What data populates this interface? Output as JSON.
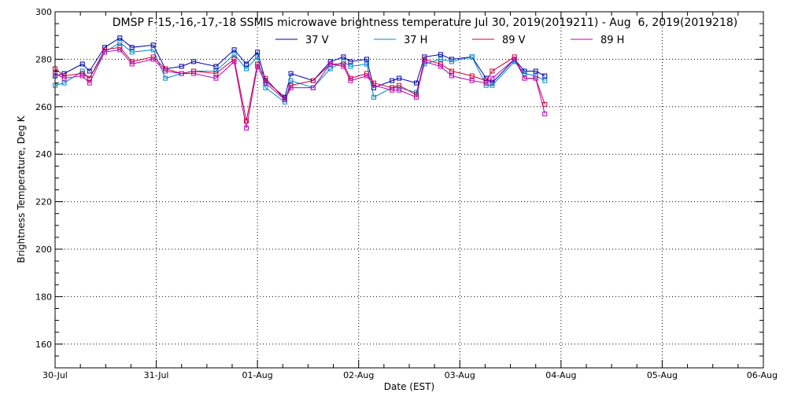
{
  "chart_data": {
    "type": "line",
    "title": "DMSP F-15,-16,-17,-18 SSMIS microwave brightness temperature Jul 30, 2019(2019211) - Aug  6, 2019(2019218)",
    "xlabel": "Date (EST)",
    "ylabel": "Brightness Temperature, Deg K",
    "ylim": [
      150,
      300
    ],
    "xlim": [
      0,
      7
    ],
    "grid": true,
    "legend_position": "top-center",
    "x_ticks": [
      "30-Jul",
      "31-Jul",
      "01-Aug",
      "02-Aug",
      "03-Aug",
      "04-Aug",
      "05-Aug",
      "06-Aug"
    ],
    "y_ticks": [
      160,
      180,
      200,
      220,
      240,
      260,
      280,
      300
    ],
    "series": [
      {
        "name": "37 V",
        "color": "#0000aa",
        "x": [
          0.0,
          0.09,
          0.27,
          0.34,
          0.49,
          0.64,
          0.76,
          0.97,
          1.09,
          1.25,
          1.37,
          1.59,
          1.77,
          1.89,
          2.0,
          2.08,
          2.27,
          2.33,
          2.55,
          2.72,
          2.85,
          2.92,
          3.08,
          3.15,
          3.33,
          3.4,
          3.57,
          3.65,
          3.81,
          3.92,
          4.12,
          4.26,
          4.32,
          4.54,
          4.64,
          4.75,
          4.84
        ],
        "y": [
          273,
          274,
          278,
          275,
          285,
          289,
          285,
          286,
          276,
          277,
          279,
          277,
          284,
          278,
          283,
          271,
          264,
          274,
          271,
          279,
          281,
          279,
          280,
          268,
          271,
          272,
          270,
          281,
          282,
          280,
          281,
          272,
          270,
          280,
          275,
          275,
          273
        ]
      },
      {
        "name": "37 H",
        "color": "#0088cc",
        "x": [
          0.0,
          0.09,
          0.27,
          0.34,
          0.49,
          0.64,
          0.76,
          0.97,
          1.09,
          1.25,
          1.37,
          1.59,
          1.77,
          1.89,
          2.0,
          2.08,
          2.27,
          2.33,
          2.55,
          2.72,
          2.85,
          2.92,
          3.08,
          3.15,
          3.33,
          3.4,
          3.57,
          3.65,
          3.81,
          3.92,
          4.12,
          4.26,
          4.32,
          4.54,
          4.64,
          4.75,
          4.84
        ],
        "y": [
          269,
          270,
          275,
          272,
          283,
          287,
          283,
          284,
          272,
          274,
          275,
          275,
          282,
          276,
          281,
          268,
          262,
          271,
          268,
          276,
          279,
          277,
          278,
          264,
          268,
          268,
          266,
          278,
          280,
          279,
          281,
          269,
          269,
          279,
          274,
          273,
          271
        ]
      },
      {
        "name": "89 V",
        "color": "#cc0033",
        "x": [
          0.0,
          0.09,
          0.27,
          0.34,
          0.49,
          0.64,
          0.76,
          0.97,
          1.09,
          1.25,
          1.37,
          1.59,
          1.77,
          1.89,
          2.0,
          2.08,
          2.27,
          2.33,
          2.55,
          2.72,
          2.85,
          2.92,
          3.08,
          3.15,
          3.33,
          3.4,
          3.57,
          3.65,
          3.81,
          3.92,
          4.12,
          4.26,
          4.32,
          4.54,
          4.64,
          4.75,
          4.84
        ],
        "y": [
          276,
          273,
          274,
          272,
          284,
          285,
          279,
          281,
          276,
          274,
          275,
          274,
          280,
          254,
          278,
          272,
          263,
          269,
          271,
          278,
          278,
          272,
          274,
          270,
          268,
          269,
          265,
          280,
          278,
          275,
          273,
          271,
          275,
          281,
          272,
          272,
          261
        ]
      },
      {
        "name": "89 H",
        "color": "#bb00bb",
        "x": [
          0.0,
          0.09,
          0.27,
          0.34,
          0.49,
          0.64,
          0.76,
          0.97,
          1.09,
          1.25,
          1.37,
          1.59,
          1.77,
          1.89,
          2.0,
          2.08,
          2.27,
          2.33,
          2.55,
          2.72,
          2.85,
          2.92,
          3.08,
          3.15,
          3.33,
          3.4,
          3.57,
          3.65,
          3.81,
          3.92,
          4.12,
          4.26,
          4.32,
          4.54,
          4.64,
          4.75,
          4.84
        ],
        "y": [
          274,
          272,
          273,
          270,
          283,
          284,
          278,
          280,
          275,
          274,
          274,
          272,
          279,
          251,
          277,
          270,
          263,
          268,
          268,
          278,
          277,
          271,
          273,
          269,
          267,
          267,
          264,
          279,
          277,
          273,
          271,
          270,
          272,
          280,
          272,
          272,
          257
        ]
      }
    ]
  }
}
